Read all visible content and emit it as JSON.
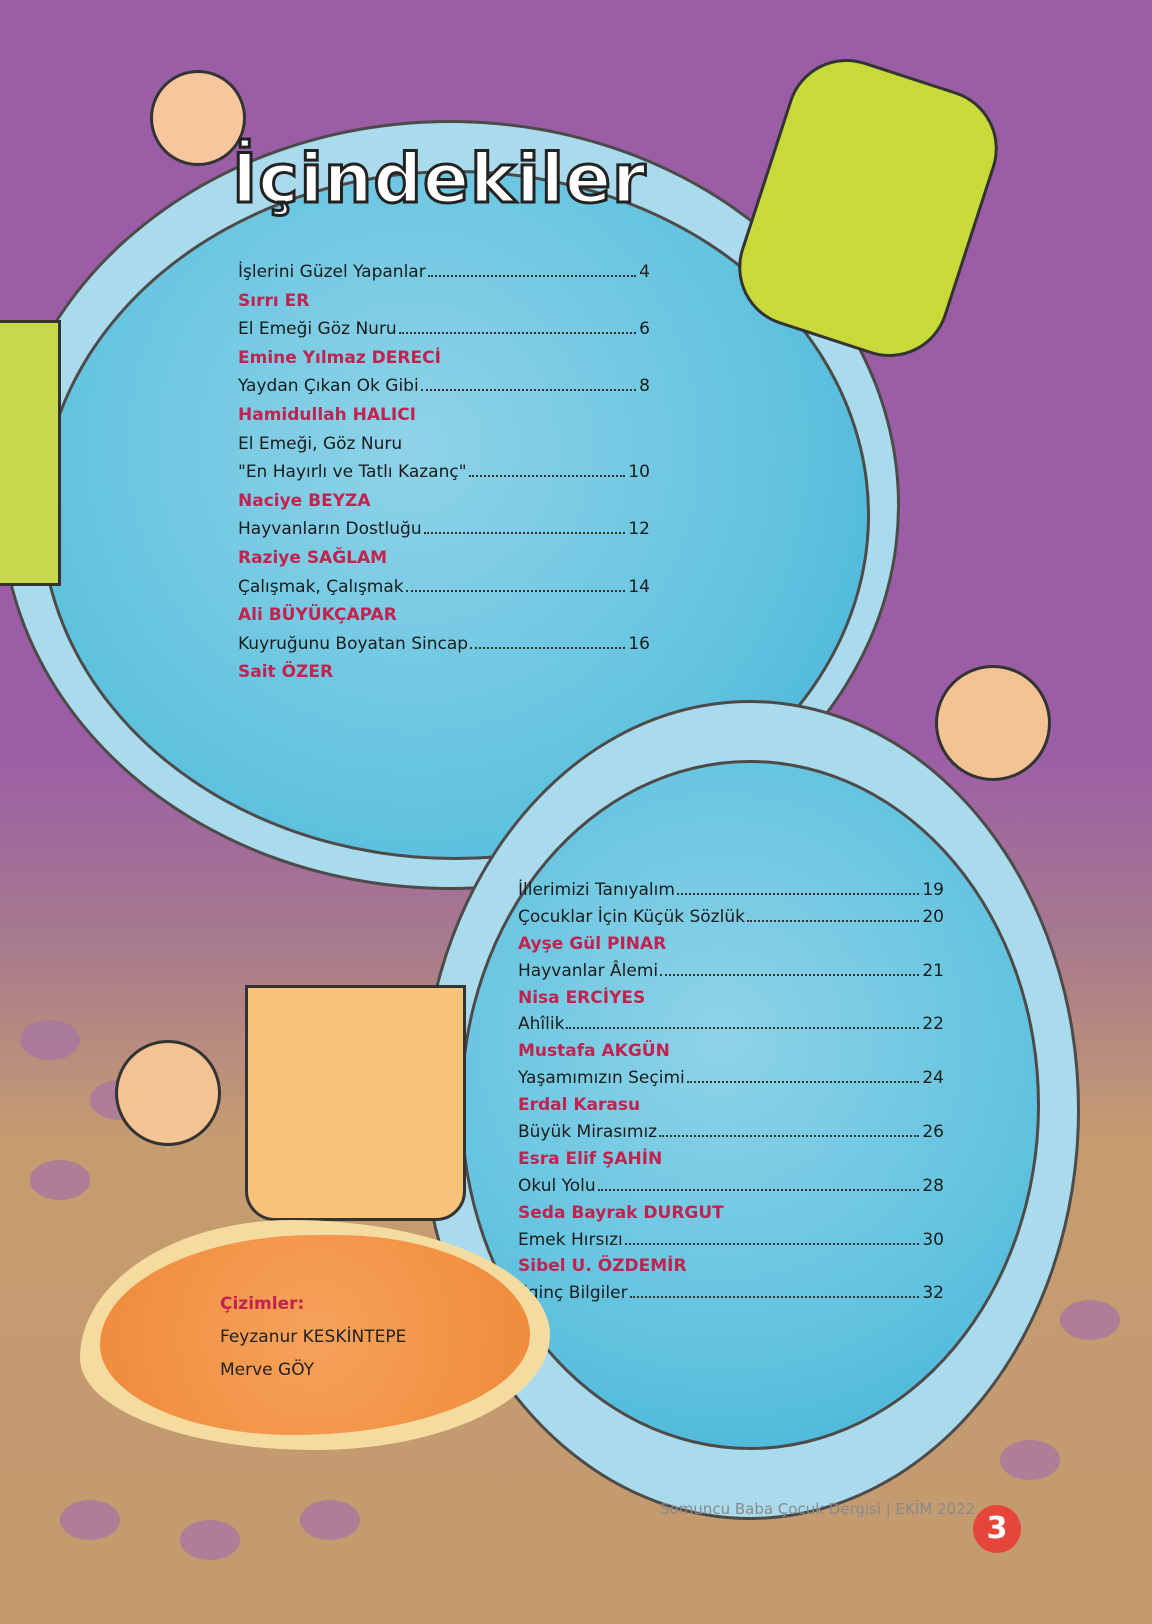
{
  "title": "İçindekiler",
  "toc_upper": [
    {
      "type": "entry",
      "title": "İşlerini Güzel Yapanlar",
      "page": "4"
    },
    {
      "type": "author",
      "name": "Sırrı ER"
    },
    {
      "type": "entry",
      "title": "El Emeği Göz Nuru",
      "page": "6"
    },
    {
      "type": "author",
      "name": "Emine Yılmaz DERECİ"
    },
    {
      "type": "entry",
      "title": "Yaydan Çıkan Ok Gibi",
      "page": "8"
    },
    {
      "type": "author",
      "name": "Hamidullah HALICI"
    },
    {
      "type": "line",
      "title": "El Emeği, Göz Nuru"
    },
    {
      "type": "entry",
      "title": "\"En Hayırlı ve Tatlı Kazanç\"",
      "page": "10"
    },
    {
      "type": "author",
      "name": "Naciye BEYZA"
    },
    {
      "type": "entry",
      "title": "Hayvanların Dostluğu",
      "page": "12"
    },
    {
      "type": "author",
      "name": "Raziye SAĞLAM"
    },
    {
      "type": "entry",
      "title": "Çalışmak, Çalışmak",
      "page": "14"
    },
    {
      "type": "author",
      "name": "Ali BÜYÜKÇAPAR"
    },
    {
      "type": "entry",
      "title": "Kuyruğunu Boyatan Sincap",
      "page": "16"
    },
    {
      "type": "author",
      "name": "Sait ÖZER"
    }
  ],
  "toc_lower": [
    {
      "type": "entry",
      "title": "İllerimizi Tanıyalım",
      "page": "19"
    },
    {
      "type": "entry",
      "title": "Çocuklar İçin Küçük Sözlük",
      "page": "20"
    },
    {
      "type": "author",
      "name": "Ayşe Gül PINAR"
    },
    {
      "type": "entry",
      "title": "Hayvanlar Âlemi",
      "page": "21"
    },
    {
      "type": "author",
      "name": "Nisa ERCİYES"
    },
    {
      "type": "entry",
      "title": "Ahîlik",
      "page": "22"
    },
    {
      "type": "author",
      "name": "Mustafa AKGÜN"
    },
    {
      "type": "entry",
      "title": "Yaşamımızın Seçimi",
      "page": "24"
    },
    {
      "type": "author",
      "name": "Erdal Karasu"
    },
    {
      "type": "entry",
      "title": "Büyük Mirasımız",
      "page": "26"
    },
    {
      "type": "author",
      "name": "Esra Elif ŞAHİN"
    },
    {
      "type": "entry",
      "title": "Okul Yolu",
      "page": "28"
    },
    {
      "type": "author",
      "name": "Seda Bayrak DURGUT"
    },
    {
      "type": "entry",
      "title": "Emek Hırsızı",
      "page": "30"
    },
    {
      "type": "author",
      "name": "Sibel U. ÖZDEMİR"
    },
    {
      "type": "entry",
      "title": "İlginç Bilgiler",
      "page": "32"
    }
  ],
  "credits": {
    "heading": "Çizimler:",
    "names": [
      "Feyzanur KESKİNTEPE",
      "Merve GÖY"
    ]
  },
  "footer": {
    "text": "Somuncu Baba Çocuk Dergisi | EKİM 2022",
    "page_number": "3"
  },
  "colors": {
    "author": "#c2224f",
    "background_top": "#9b5ea6",
    "background_bottom": "#c49a6f",
    "page_badge": "#e6453a"
  }
}
